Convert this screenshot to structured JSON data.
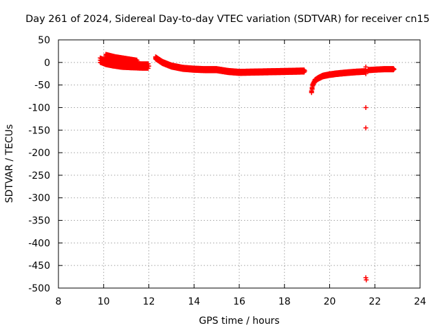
{
  "chart_data": {
    "type": "scatter",
    "title": "Day 261 of 2024, Sidereal Day-to-day VTEC variation (SDTVAR) for receiver cn15",
    "xlabel": "GPS time / hours",
    "ylabel": "SDTVAR / TECUs",
    "xlim": [
      8,
      24
    ],
    "ylim": [
      -500,
      50
    ],
    "xticks": [
      8,
      10,
      12,
      14,
      16,
      18,
      20,
      22,
      24
    ],
    "yticks": [
      50,
      0,
      -50,
      -100,
      -150,
      -200,
      -250,
      -300,
      -350,
      -400,
      -450,
      -500
    ],
    "grid": true,
    "marker": "+",
    "series": [
      {
        "name": "SDTVAR",
        "color": "#ff0000",
        "segments": [
          {
            "x": [
              9.85,
              10.1,
              10.4,
              10.8,
              11.2,
              11.7,
              12.0
            ],
            "y": [
              5,
              0,
              -3,
              -6,
              -7,
              -8,
              -8
            ],
            "spread": 10
          },
          {
            "x": [
              10.1,
              10.5,
              11.0,
              11.5
            ],
            "y": [
              15,
              10,
              6,
              2
            ],
            "spread": 6
          },
          {
            "x": [
              12.3,
              12.6,
              13.0,
              13.5,
              14.0,
              14.5,
              15.0,
              15.5,
              16.0,
              17.0,
              18.0,
              18.9
            ],
            "y": [
              10,
              0,
              -8,
              -13,
              -15,
              -16,
              -16,
              -20,
              -22,
              -21,
              -20,
              -19
            ],
            "spread": 5
          },
          {
            "x": [
              19.2,
              19.25,
              19.35,
              19.5,
              19.7,
              20.0,
              20.3,
              20.7,
              21.2,
              21.6
            ],
            "y": [
              -65,
              -50,
              -40,
              -35,
              -30,
              -27,
              -25,
              -23,
              -21,
              -20
            ],
            "spread": 4
          },
          {
            "x": [
              21.7,
              22.0,
              22.4,
              22.85
            ],
            "y": [
              -17,
              -16,
              -15,
              -15
            ],
            "spread": 3
          }
        ],
        "outliers": [
          {
            "x": 21.6,
            "y": -100
          },
          {
            "x": 21.6,
            "y": -145
          },
          {
            "x": 21.6,
            "y": -477
          },
          {
            "x": 21.62,
            "y": -482
          },
          {
            "x": 21.6,
            "y": -25
          },
          {
            "x": 21.6,
            "y": -10
          }
        ]
      }
    ]
  }
}
